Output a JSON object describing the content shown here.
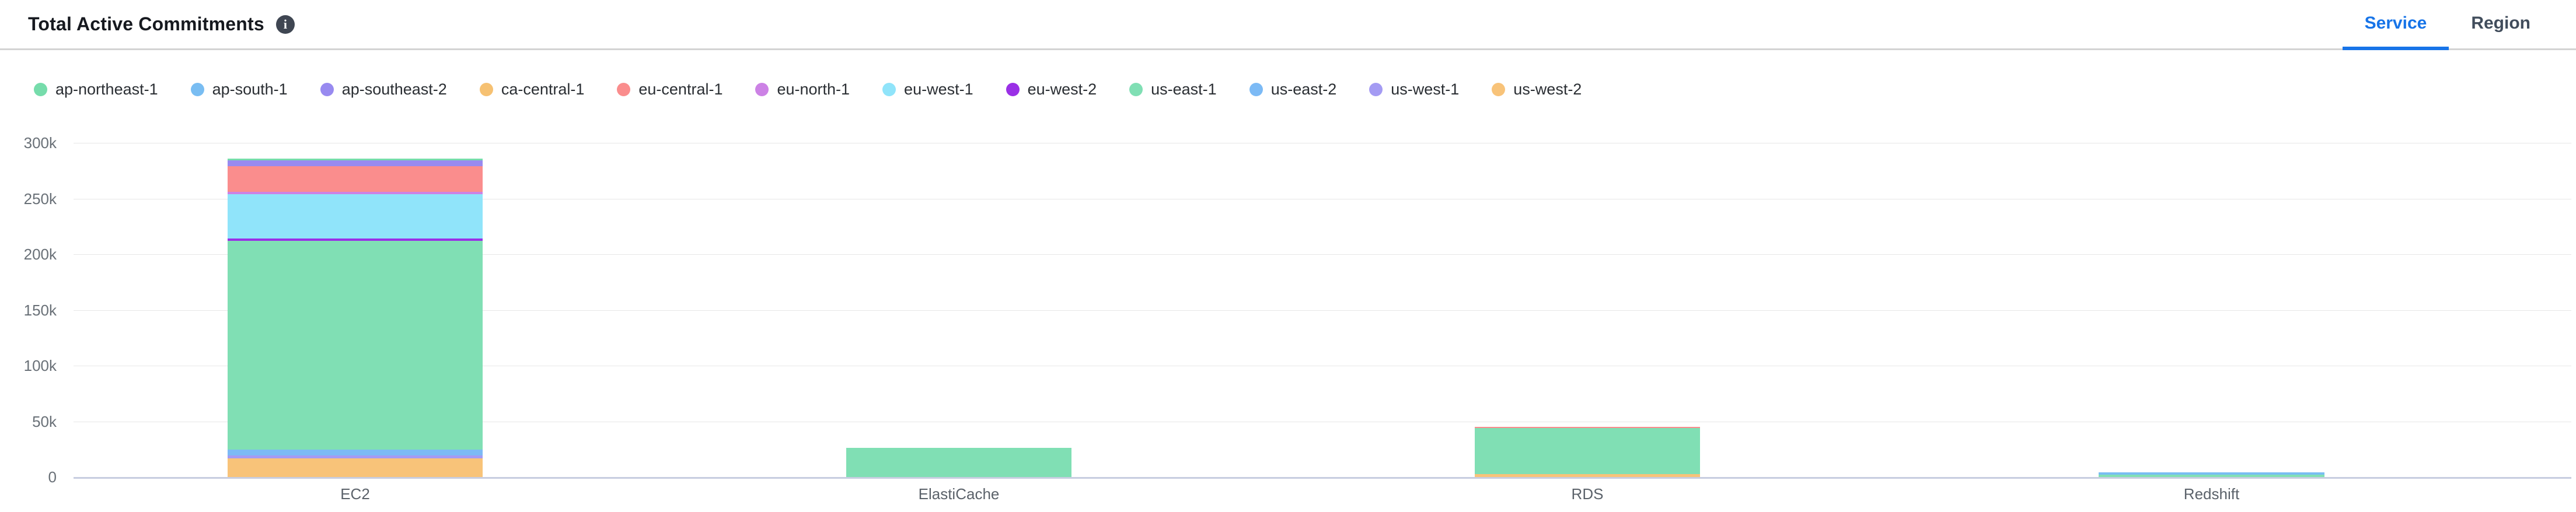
{
  "header": {
    "title": "Total Active Commitments",
    "info_icon": "info",
    "tabs": [
      {
        "label": "Service",
        "active": true
      },
      {
        "label": "Region",
        "active": false
      }
    ]
  },
  "colors": {
    "accent_blue": "#1774e8",
    "axis_line": "#c7cde0",
    "gridline": "#e7e7e7"
  },
  "chart_data": {
    "type": "bar",
    "stacked": true,
    "title": "Total Active Commitments",
    "xlabel": "",
    "ylabel": "",
    "categories": [
      "EC2",
      "ElastiCache",
      "RDS",
      "Redshift"
    ],
    "series": [
      {
        "name": "ap-northeast-1",
        "color": "#76dcab",
        "values": [
          1600,
          0,
          0,
          0
        ]
      },
      {
        "name": "ap-south-1",
        "color": "#79bdf2",
        "values": [
          0,
          0,
          0,
          2100
        ]
      },
      {
        "name": "ap-southeast-2",
        "color": "#988af0",
        "values": [
          5200,
          0,
          0,
          0
        ]
      },
      {
        "name": "ca-central-1",
        "color": "#f6c172",
        "values": [
          0,
          0,
          0,
          0
        ]
      },
      {
        "name": "eu-central-1",
        "color": "#fa8d8d",
        "values": [
          23000,
          0,
          1000,
          0
        ]
      },
      {
        "name": "eu-north-1",
        "color": "#cc82e5",
        "values": [
          2100,
          0,
          0,
          0
        ]
      },
      {
        "name": "eu-west-1",
        "color": "#90e4fa",
        "values": [
          39800,
          0,
          0,
          0
        ]
      },
      {
        "name": "eu-west-2",
        "color": "#9a30e6",
        "values": [
          2100,
          0,
          0,
          0
        ]
      },
      {
        "name": "us-east-1",
        "color": "#80dfb4",
        "values": [
          187400,
          26200,
          41400,
          2000
        ]
      },
      {
        "name": "us-east-2",
        "color": "#7cbaf5",
        "values": [
          5200,
          0,
          0,
          0
        ]
      },
      {
        "name": "us-west-1",
        "color": "#a49bf3",
        "values": [
          2600,
          0,
          0,
          0
        ]
      },
      {
        "name": "us-west-2",
        "color": "#f8c379",
        "values": [
          16800,
          0,
          2600,
          0
        ]
      }
    ],
    "stack_order": "reverse-legend (us-west-2 at bottom, ap-northeast-1 on top)",
    "ylim": [
      0,
      300000
    ],
    "ytick_step": 50000,
    "ytick_labels": [
      "0",
      "50k",
      "100k",
      "150k",
      "200k",
      "250k",
      "300k"
    ],
    "grid": true,
    "legend_position": "top-left"
  }
}
